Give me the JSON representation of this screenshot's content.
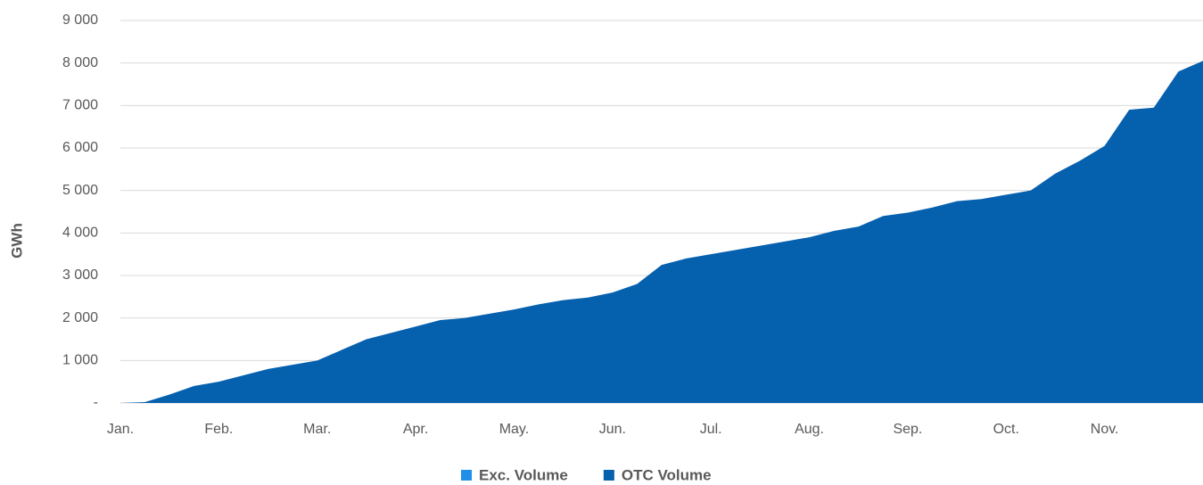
{
  "chart_data": {
    "type": "stacked-area",
    "ylabel": "GWh",
    "categories": [
      "Jan.",
      null,
      null,
      null,
      "Feb.",
      null,
      null,
      null,
      "Mar.",
      null,
      null,
      null,
      "Apr.",
      null,
      null,
      null,
      "May.",
      null,
      null,
      null,
      "Jun.",
      null,
      null,
      null,
      "Jul.",
      null,
      null,
      null,
      "Aug.",
      null,
      null,
      null,
      "Sep.",
      null,
      null,
      null,
      "Oct.",
      null,
      null,
      null,
      "Nov.",
      null,
      null,
      null,
      null
    ],
    "series": [
      {
        "name": "Exc. Volume",
        "color": "#1f8fe8",
        "values": [
          0,
          0,
          0,
          0,
          0,
          0,
          0,
          0,
          0,
          0,
          0,
          0,
          0,
          0,
          0,
          0,
          0,
          0,
          0,
          0,
          0,
          0,
          0,
          0,
          0,
          0,
          0,
          0,
          0,
          0,
          0,
          0,
          0,
          0,
          0,
          0,
          0,
          0,
          0,
          0,
          0,
          0,
          0,
          0,
          0
        ]
      },
      {
        "name": "OTC Volume",
        "color": "#0560ae",
        "values": [
          0,
          20,
          200,
          400,
          500,
          650,
          800,
          900,
          1000,
          1250,
          1500,
          1650,
          1800,
          1950,
          2000,
          2100,
          2200,
          2320,
          2420,
          2480,
          2600,
          2800,
          3250,
          3400,
          3500,
          3600,
          3700,
          3800,
          3900,
          4050,
          4150,
          4400,
          4480,
          4600,
          4750,
          4800,
          4900,
          5000,
          5400,
          5700,
          6050,
          6900,
          6950,
          7800,
          8050
        ]
      }
    ],
    "ylim": [
      0,
      9000
    ],
    "yticks": [
      {
        "value": 0,
        "label": "-"
      },
      {
        "value": 1000,
        "label": "1 000"
      },
      {
        "value": 2000,
        "label": "2 000"
      },
      {
        "value": 3000,
        "label": "3 000"
      },
      {
        "value": 4000,
        "label": "4 000"
      },
      {
        "value": 5000,
        "label": "5 000"
      },
      {
        "value": 6000,
        "label": "6 000"
      },
      {
        "value": 7000,
        "label": "7 000"
      },
      {
        "value": 8000,
        "label": "8 000"
      },
      {
        "value": 9000,
        "label": "9 000"
      }
    ],
    "grid": true,
    "legend": "bottom"
  }
}
